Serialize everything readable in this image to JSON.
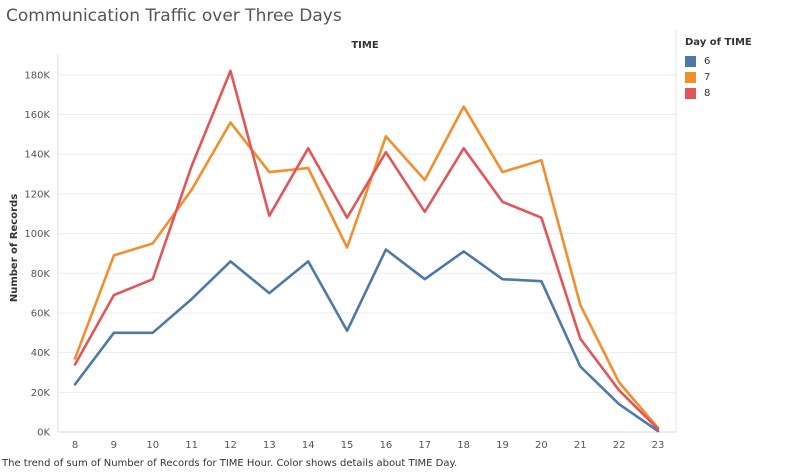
{
  "title": "Communication Traffic over Three Days",
  "caption": "The trend of sum of Number of Records for TIME Hour.  Color shows details about TIME Day.",
  "legend": {
    "title": "Day of TIME",
    "placement": "right"
  },
  "chart_data": {
    "type": "line",
    "title": "Communication Traffic over Three Days",
    "column_header": "TIME",
    "xlabel": "",
    "ylabel": "Number of Records",
    "categories": [
      "8",
      "9",
      "10",
      "11",
      "12",
      "13",
      "14",
      "15",
      "16",
      "17",
      "18",
      "19",
      "20",
      "21",
      "22",
      "23"
    ],
    "ylim": [
      0,
      190000
    ],
    "yticks": [
      0,
      20000,
      40000,
      60000,
      80000,
      100000,
      120000,
      140000,
      160000,
      180000
    ],
    "ytick_labels": [
      "0K",
      "20K",
      "40K",
      "60K",
      "80K",
      "100K",
      "120K",
      "140K",
      "160K",
      "180K"
    ],
    "grid": true,
    "series": [
      {
        "name": "6",
        "color": "#4e79a7",
        "values": [
          24000,
          50000,
          50000,
          67000,
          86000,
          70000,
          86000,
          51000,
          92000,
          77000,
          91000,
          77000,
          76000,
          33000,
          14000,
          500
        ]
      },
      {
        "name": "7",
        "color": "#f28e2b",
        "values": [
          37000,
          89000,
          95000,
          122000,
          156000,
          131000,
          133000,
          93000,
          149000,
          127000,
          164000,
          131000,
          137000,
          64000,
          25000,
          2000
        ]
      },
      {
        "name": "8",
        "color": "#e15759",
        "values": [
          34000,
          69000,
          77000,
          134000,
          182000,
          109000,
          143000,
          108000,
          141000,
          111000,
          143000,
          116000,
          108000,
          47000,
          21000,
          1500
        ]
      }
    ]
  }
}
